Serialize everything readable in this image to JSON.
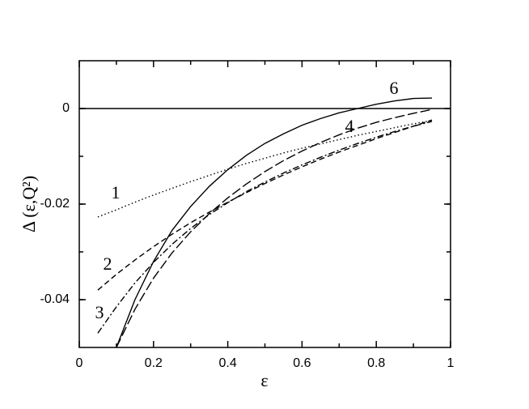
{
  "chart_data": {
    "type": "line",
    "x_label": "ε",
    "y_label": "Δ (ε,Q²)",
    "x": [
      0.05,
      0.1,
      0.15,
      0.2,
      0.25,
      0.3,
      0.35,
      0.4,
      0.45,
      0.5,
      0.55,
      0.6,
      0.65,
      0.7,
      0.75,
      0.8,
      0.85,
      0.9,
      0.95
    ],
    "series": [
      {
        "name": "1",
        "color": "#000000",
        "line_style": "dotted",
        "values": [
          -0.0227,
          -0.0212,
          -0.0196,
          -0.0181,
          -0.0167,
          -0.0153,
          -0.014,
          -0.0127,
          -0.0115,
          -0.0104,
          -0.0093,
          -0.0083,
          -0.0074,
          -0.0065,
          -0.0056,
          -0.0048,
          -0.004,
          -0.0032,
          -0.0025
        ]
      },
      {
        "name": "2",
        "color": "#000000",
        "line_style": "dashed",
        "values": [
          -0.038,
          -0.0347,
          -0.0317,
          -0.0289,
          -0.0263,
          -0.0239,
          -0.0217,
          -0.0196,
          -0.0176,
          -0.0157,
          -0.0139,
          -0.0122,
          -0.0106,
          -0.0091,
          -0.0077,
          -0.0063,
          -0.005,
          -0.0037,
          -0.0024
        ]
      },
      {
        "name": "3",
        "color": "#000000",
        "line_style": "dashdot",
        "values": [
          -0.047,
          -0.0415,
          -0.0365,
          -0.0322,
          -0.0284,
          -0.0251,
          -0.0222,
          -0.0197,
          -0.0174,
          -0.0154,
          -0.0135,
          -0.0118,
          -0.0102,
          -0.0087,
          -0.0073,
          -0.006,
          -0.0048,
          -0.0037,
          -0.0027
        ]
      },
      {
        "name": "4",
        "color": "#000000",
        "line_style": "longdash",
        "values": [
          null,
          -0.05,
          -0.042,
          -0.0355,
          -0.0302,
          -0.0258,
          -0.022,
          -0.0187,
          -0.0158,
          -0.0132,
          -0.0109,
          -0.0089,
          -0.0071,
          -0.0055,
          -0.0041,
          -0.0029,
          -0.0019,
          -0.001,
          -0.0002
        ]
      },
      {
        "name": "6",
        "color": "#000000",
        "line_style": "solid",
        "values": [
          null,
          -0.05,
          -0.04,
          -0.032,
          -0.0255,
          -0.0205,
          -0.0163,
          -0.0128,
          -0.0098,
          -0.0073,
          -0.0053,
          -0.0035,
          -0.0021,
          -0.0009,
          0,
          0.0009,
          0.0016,
          0.0021,
          0.0022
        ]
      }
    ],
    "xlim": [
      0,
      1
    ],
    "ylim": [
      -0.05,
      0.01
    ],
    "xticks": [
      0,
      0.2,
      0.4,
      0.6,
      0.8,
      1
    ],
    "yticks": [
      -0.04,
      -0.02,
      0
    ],
    "zero_line": true,
    "grid": false
  }
}
